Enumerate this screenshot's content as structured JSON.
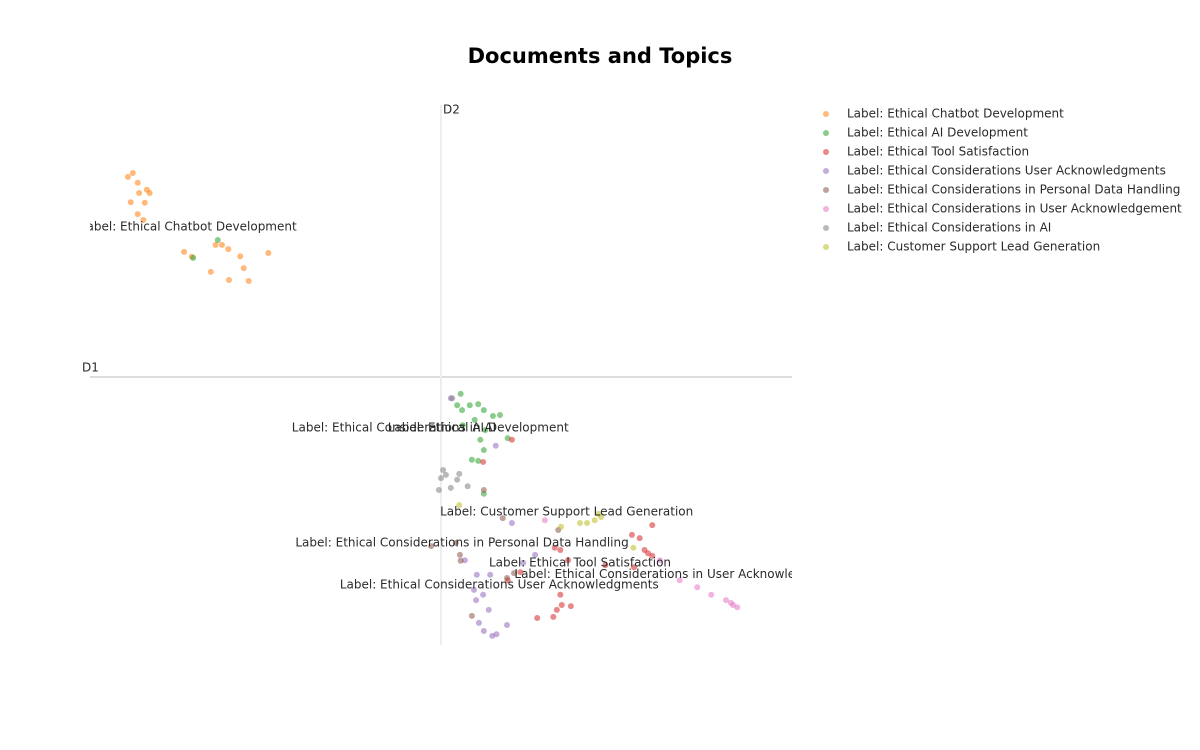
{
  "chart_data": {
    "type": "scatter",
    "title": "Documents and Topics",
    "xlabel": "D1",
    "ylabel": "D2",
    "xlim": [
      -5,
      5
    ],
    "ylim": [
      -5,
      5
    ],
    "series": [
      {
        "name": "Label: Ethical Chatbot Development",
        "color": "#ff7f0e",
        "x": [
          -4.46,
          -4.39,
          -4.32,
          -4.19,
          -4.15,
          -4.3,
          -4.42,
          -4.22,
          -4.32,
          -4.24,
          -3.66,
          -3.55,
          -3.21,
          -3.12,
          -3.03,
          -2.86,
          -2.81,
          -2.74,
          -3.28,
          -3.02,
          -2.46
        ],
        "values": [
          3.67,
          3.74,
          3.56,
          3.43,
          3.37,
          3.37,
          3.2,
          3.19,
          2.98,
          2.87,
          2.28,
          2.19,
          2.41,
          2.41,
          2.33,
          2.2,
          1.98,
          1.74,
          1.91,
          1.76,
          2.26
        ]
      },
      {
        "name": "Label: Ethical AI Development",
        "color": "#2ca02c",
        "x": [
          0.28,
          0.23,
          0.3,
          0.41,
          0.53,
          0.61,
          0.74,
          0.84,
          0.48,
          0.31,
          0.63,
          0.56,
          0.95,
          0.61,
          0.53,
          0.44,
          0.61,
          -3.18,
          -3.53
        ],
        "values": [
          -0.35,
          -0.56,
          -0.65,
          -0.56,
          -0.54,
          -0.65,
          -0.76,
          -0.74,
          -0.83,
          -0.93,
          -1.02,
          -1.2,
          -1.17,
          -1.39,
          -1.59,
          -1.57,
          -2.2,
          2.5,
          2.17
        ]
      },
      {
        "name": "Label: Ethical Tool Satisfaction",
        "color": "#d62728",
        "x": [
          3.01,
          2.83,
          2.72,
          2.9,
          3.01,
          2.95,
          2.75,
          2.34,
          1.7,
          1.62,
          1.81,
          1.7,
          1.72,
          1.65,
          1.6,
          1.37,
          1.85,
          0.95,
          1.13,
          0.6,
          1.01
        ],
        "values": [
          -2.78,
          -3.02,
          -2.96,
          -3.24,
          -3.35,
          -3.3,
          -3.56,
          -3.52,
          -3.24,
          -3.2,
          -3.43,
          -4.07,
          -4.26,
          -4.35,
          -4.48,
          -4.5,
          -4.28,
          -3.8,
          -3.65,
          -1.61,
          -1.2
        ]
      },
      {
        "name": "Label: Ethical Considerations User Acknowledgments",
        "color": "#9467bd",
        "x": [
          0.14,
          0.78,
          1.01,
          0.34,
          0.51,
          0.7,
          0.47,
          0.6,
          0.5,
          0.68,
          0.54,
          0.61,
          0.73,
          0.79,
          0.94,
          1.17,
          1.34
        ],
        "values": [
          -0.43,
          -1.31,
          -2.74,
          -3.43,
          -3.7,
          -3.7,
          -3.98,
          -4.07,
          -4.17,
          -4.35,
          -4.59,
          -4.74,
          -4.83,
          -4.8,
          -4.63,
          -3.48,
          -3.33
        ]
      },
      {
        "name": "Label: Ethical Considerations in Personal Data Handling",
        "color": "#8c564b",
        "x": [
          -0.14,
          0.21,
          0.27,
          0.28,
          0.88,
          1.67,
          0.44,
          0.94,
          1.04,
          0.61
        ],
        "values": [
          -3.17,
          -3.11,
          -3.33,
          -3.44,
          -2.65,
          -2.87,
          -4.46,
          -3.76,
          -3.67,
          -2.13
        ]
      },
      {
        "name": "Label: Ethical Considerations in User Acknowledgement",
        "color": "#e377c2",
        "x": [
          3.4,
          3.65,
          3.85,
          4.06,
          4.16,
          4.22,
          4.13,
          3.12,
          1.48
        ],
        "values": [
          -3.8,
          -3.93,
          -4.07,
          -4.17,
          -4.26,
          -4.3,
          -4.22,
          -3.43,
          -2.69
        ]
      },
      {
        "name": "Label: Ethical Considerations in AI",
        "color": "#7f7f7f",
        "x": [
          0.03,
          0.07,
          0.0,
          0.26,
          0.38,
          0.14,
          -0.03,
          0.23,
          0.16
        ],
        "values": [
          -1.76,
          -1.85,
          -1.91,
          -1.83,
          -2.06,
          -2.09,
          -2.13,
          -1.94,
          -0.43
        ]
      },
      {
        "name": "Label: Customer Support Lead Generation",
        "color": "#bcbd22",
        "x": [
          1.98,
          2.08,
          2.19,
          2.24,
          2.28,
          1.71,
          2.74,
          0.26
        ],
        "values": [
          -2.74,
          -2.74,
          -2.69,
          -2.57,
          -2.63,
          -2.81,
          -3.2,
          -2.41
        ]
      }
    ],
    "annotations": [
      {
        "text": "Label: Ethical Chatbot Development",
        "x": -3.6,
        "y": 2.74
      },
      {
        "text": "Label: Ethical Considerations in AI",
        "x": -0.67,
        "y": -0.98
      },
      {
        "text": "Label: Ethical AI Development",
        "x": 0.53,
        "y": -0.98
      },
      {
        "text": "Label: Customer Support Lead Generation",
        "x": 1.79,
        "y": -2.54
      },
      {
        "text": "Label: Ethical Considerations in Personal Data Handling",
        "x": 0.3,
        "y": -3.11
      },
      {
        "text": "Label: Ethical Tool Satisfaction",
        "x": 1.98,
        "y": -3.48
      },
      {
        "text": "Label: Ethical Considerations in User Acknowledgement",
        "x": 3.43,
        "y": -3.69
      },
      {
        "text": "Label: Ethical Considerations User Acknowledgments",
        "x": 0.83,
        "y": -3.89
      }
    ]
  }
}
